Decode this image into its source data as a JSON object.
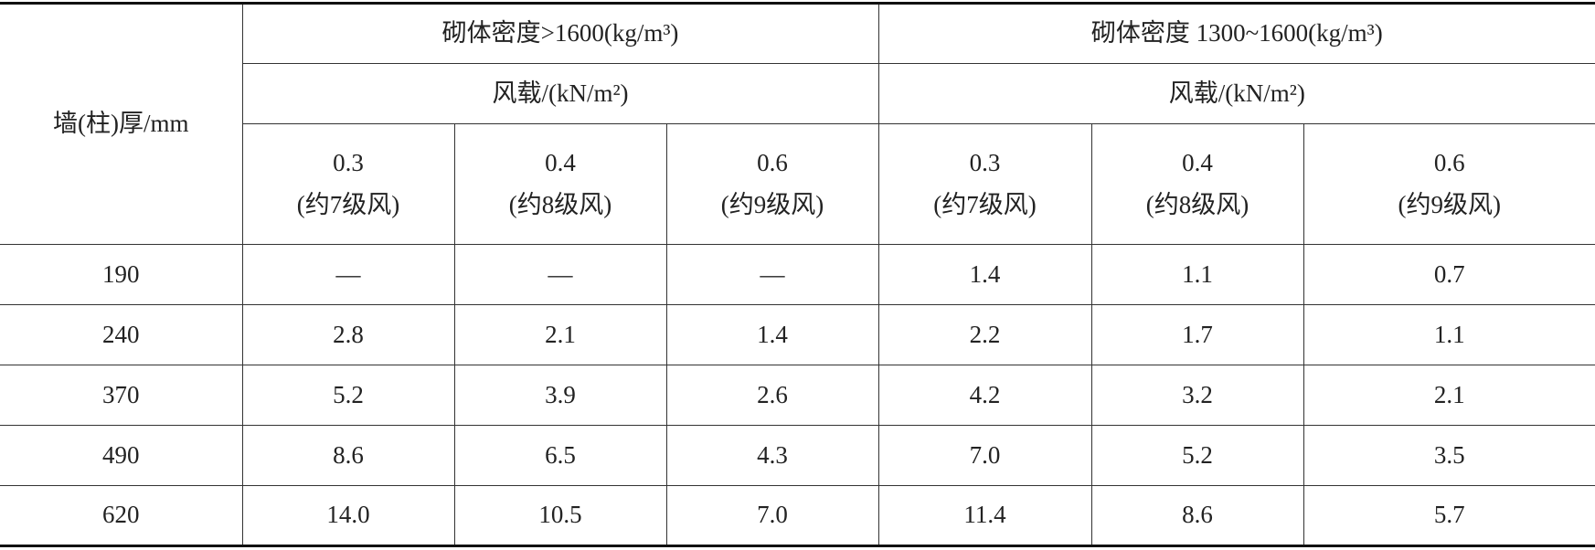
{
  "table": {
    "header": {
      "row_header": "墙(柱)厚/mm",
      "groups": [
        {
          "title": "砌体密度>1600(kg/m³)",
          "subtitle": "风载/(kN/m²)",
          "columns": [
            {
              "value": "0.3",
              "note": "(约7级风)"
            },
            {
              "value": "0.4",
              "note": "(约8级风)"
            },
            {
              "value": "0.6",
              "note": "(约9级风)"
            }
          ]
        },
        {
          "title": "砌体密度 1300~1600(kg/m³)",
          "subtitle": "风载/(kN/m²)",
          "columns": [
            {
              "value": "0.3",
              "note": "(约7级风)"
            },
            {
              "value": "0.4",
              "note": "(约8级风)"
            },
            {
              "value": "0.6",
              "note": "(约9级风)"
            }
          ]
        }
      ]
    },
    "rows": [
      [
        "190",
        "—",
        "—",
        "—",
        "1.4",
        "1.1",
        "0.7"
      ],
      [
        "240",
        "2.8",
        "2.1",
        "1.4",
        "2.2",
        "1.7",
        "1.1"
      ],
      [
        "370",
        "5.2",
        "3.9",
        "2.6",
        "4.2",
        "3.2",
        "2.1"
      ],
      [
        "490",
        "8.6",
        "6.5",
        "4.3",
        "7.0",
        "5.2",
        "3.5"
      ],
      [
        "620",
        "14.0",
        "10.5",
        "7.0",
        "11.4",
        "8.6",
        "5.7"
      ]
    ]
  }
}
